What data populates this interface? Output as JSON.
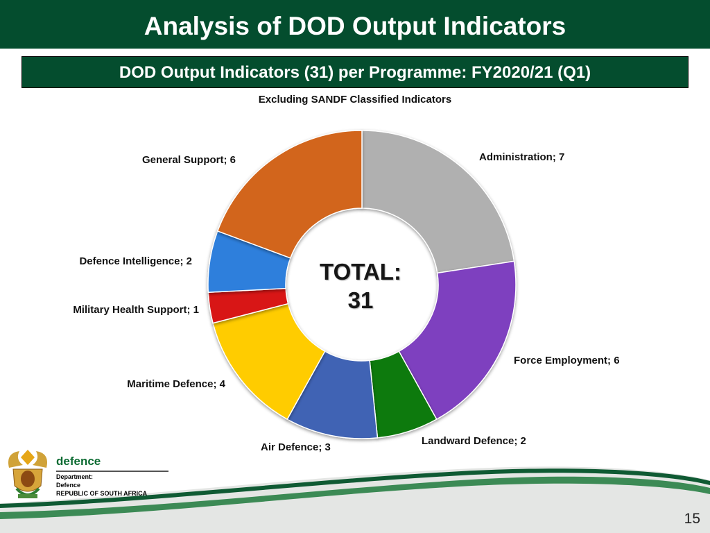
{
  "slide": {
    "title": "Analysis of DOD Output Indicators",
    "page_number": "15"
  },
  "chart_data": {
    "type": "donut",
    "title": "DOD Output Indicators (31) per Programme: FY2020/21 (Q1)",
    "subtitle": "Excluding SANDF Classified Indicators",
    "center_label_line1": "TOTAL:",
    "center_label_line2": "31",
    "categories": [
      "Administration",
      "Force Employment",
      "Landward Defence",
      "Air Defence",
      "Maritime Defence",
      "Military Health Support",
      "Defence Intelligence",
      "General Support"
    ],
    "values": [
      7,
      6,
      2,
      3,
      4,
      1,
      2,
      6
    ],
    "labels": [
      "Administration; 7",
      "Force Employment; 6",
      "Landward Defence; 2",
      "Air Defence; 3",
      "Maritime Defence; 4",
      "Military Health Support; 1",
      "Defence Intelligence; 2",
      "General Support; 6"
    ],
    "colors": [
      "#b0b0b0",
      "#7e3fbf",
      "#117a11",
      "#3f64b4",
      "#ffcc00",
      "#d81616",
      "#2f7fdc",
      "#d2651b"
    ]
  },
  "footer": {
    "brand": "defence",
    "line1": "Department:",
    "line2": "Defence",
    "line3": "REPUBLIC OF SOUTH AFRICA"
  }
}
